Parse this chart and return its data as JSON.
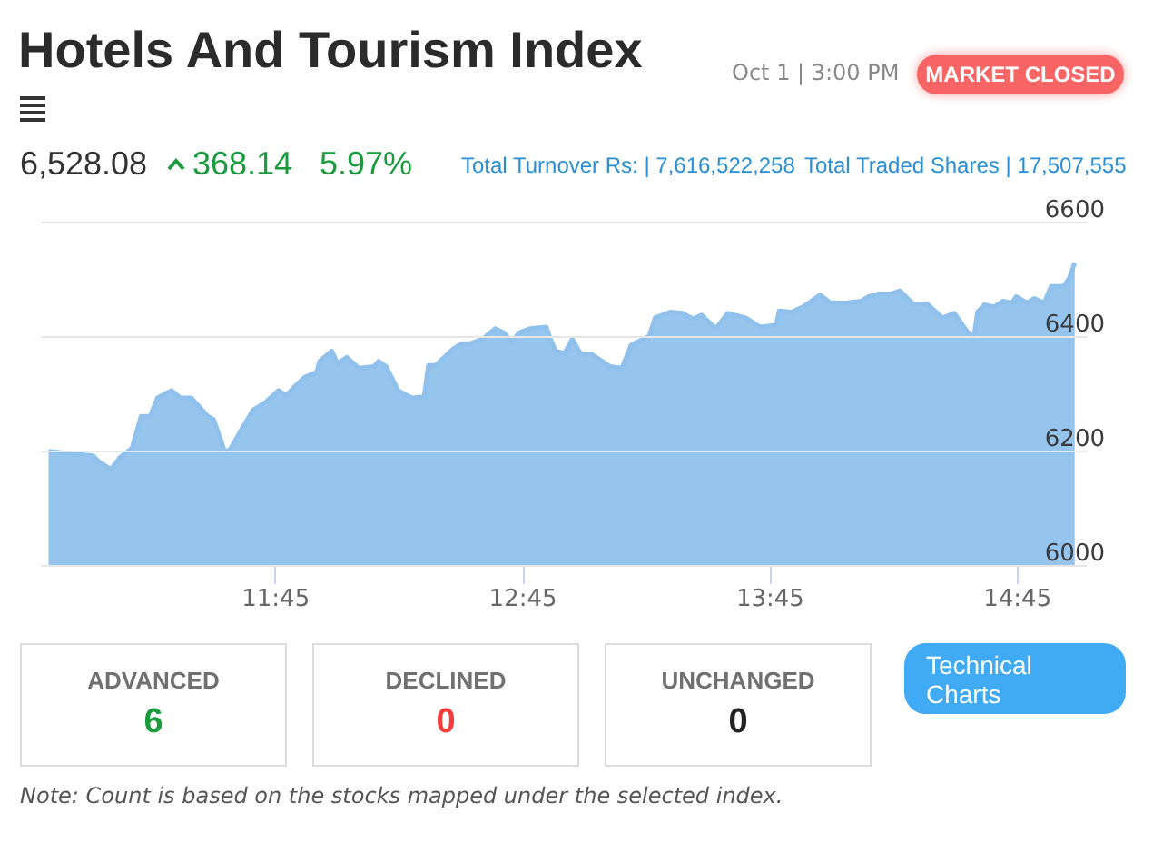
{
  "chart_data": {
    "type": "area",
    "title": "Hotels And Tourism Index",
    "annotations": [
      "Oct 1 | 3:00 PM",
      "MARKET CLOSED",
      "6,528.08",
      "368.14",
      "5.97%",
      "Total Turnover Rs: | 7,616,522,258",
      "Total Traded Shares | 17,507,555",
      "ADVANCED",
      "6",
      "DECLINED",
      "0",
      "UNCHANGED",
      "0",
      "Technical Charts",
      "Note: Count is based on the stocks mapped under the selected index."
    ],
    "series": [
      {
        "color": "#8fc1ec",
        "x": [
          10.835,
          11.014,
          11.038,
          11.087,
          11.124,
          11.172,
          11.209,
          11.246,
          11.275,
          11.332,
          11.368,
          11.412,
          11.479,
          11.503,
          11.545,
          11.565,
          11.614,
          11.662,
          11.711,
          11.765,
          11.796,
          11.833,
          11.87,
          11.919,
          11.931,
          11.98,
          12.004,
          12.041,
          12.09,
          12.151,
          12.17,
          12.2,
          12.249,
          12.303,
          12.354,
          12.371,
          12.401,
          12.469,
          12.506,
          12.542,
          12.591,
          12.64,
          12.676,
          12.708,
          12.738,
          12.782,
          12.848,
          12.86,
          12.885,
          12.922,
          12.953,
          12.988,
          13.032,
          13.105,
          13.154,
          13.19,
          13.264,
          13.288,
          13.349,
          13.398,
          13.442,
          13.476,
          13.533,
          13.582,
          13.655,
          13.711,
          13.777,
          13.79,
          13.839,
          13.887,
          13.956,
          13.997,
          14.059,
          14.12,
          14.151,
          14.193,
          14.242,
          14.279,
          14.332,
          14.389,
          14.45,
          14.499,
          14.548,
          14.577,
          14.592,
          14.621,
          14.658,
          14.694,
          14.731,
          14.748,
          14.792,
          14.822,
          14.861,
          14.89,
          14.939,
          14.963,
          14.985
        ],
        "values": [
          6199,
          6191,
          6181,
          6167,
          6188,
          6204,
          6260,
          6260,
          6292,
          6305,
          6292,
          6292,
          6260,
          6254,
          6201,
          6199,
          6236,
          6271,
          6284,
          6305,
          6296,
          6313,
          6328,
          6337,
          6356,
          6374,
          6352,
          6363,
          6344,
          6347,
          6356,
          6347,
          6305,
          6292,
          6294,
          6349,
          6349,
          6377,
          6387,
          6387,
          6395,
          6413,
          6406,
          6390,
          6406,
          6413,
          6416,
          6400,
          6374,
          6370,
          6395,
          6368,
          6368,
          6347,
          6344,
          6384,
          6400,
          6432,
          6442,
          6440,
          6430,
          6437,
          6413,
          6440,
          6432,
          6416,
          6419,
          6444,
          6442,
          6451,
          6472,
          6458,
          6458,
          6461,
          6469,
          6474,
          6474,
          6479,
          6456,
          6456,
          6432,
          6440,
          6409,
          6398,
          6442,
          6455,
          6451,
          6461,
          6458,
          6469,
          6458,
          6466,
          6458,
          6487,
          6487,
          6501,
          6528
        ]
      }
    ],
    "xlim": [
      10.8,
      15.03
    ],
    "xticks": [
      {
        "value": 11.75,
        "label": "11:45"
      },
      {
        "value": 12.75,
        "label": "12:45"
      },
      {
        "value": 13.75,
        "label": "13:45"
      },
      {
        "value": 14.75,
        "label": "14:45"
      }
    ],
    "ylim": [
      6000,
      6600
    ],
    "yticks": [
      6000,
      6200,
      6400,
      6600
    ],
    "grid": "y"
  }
}
